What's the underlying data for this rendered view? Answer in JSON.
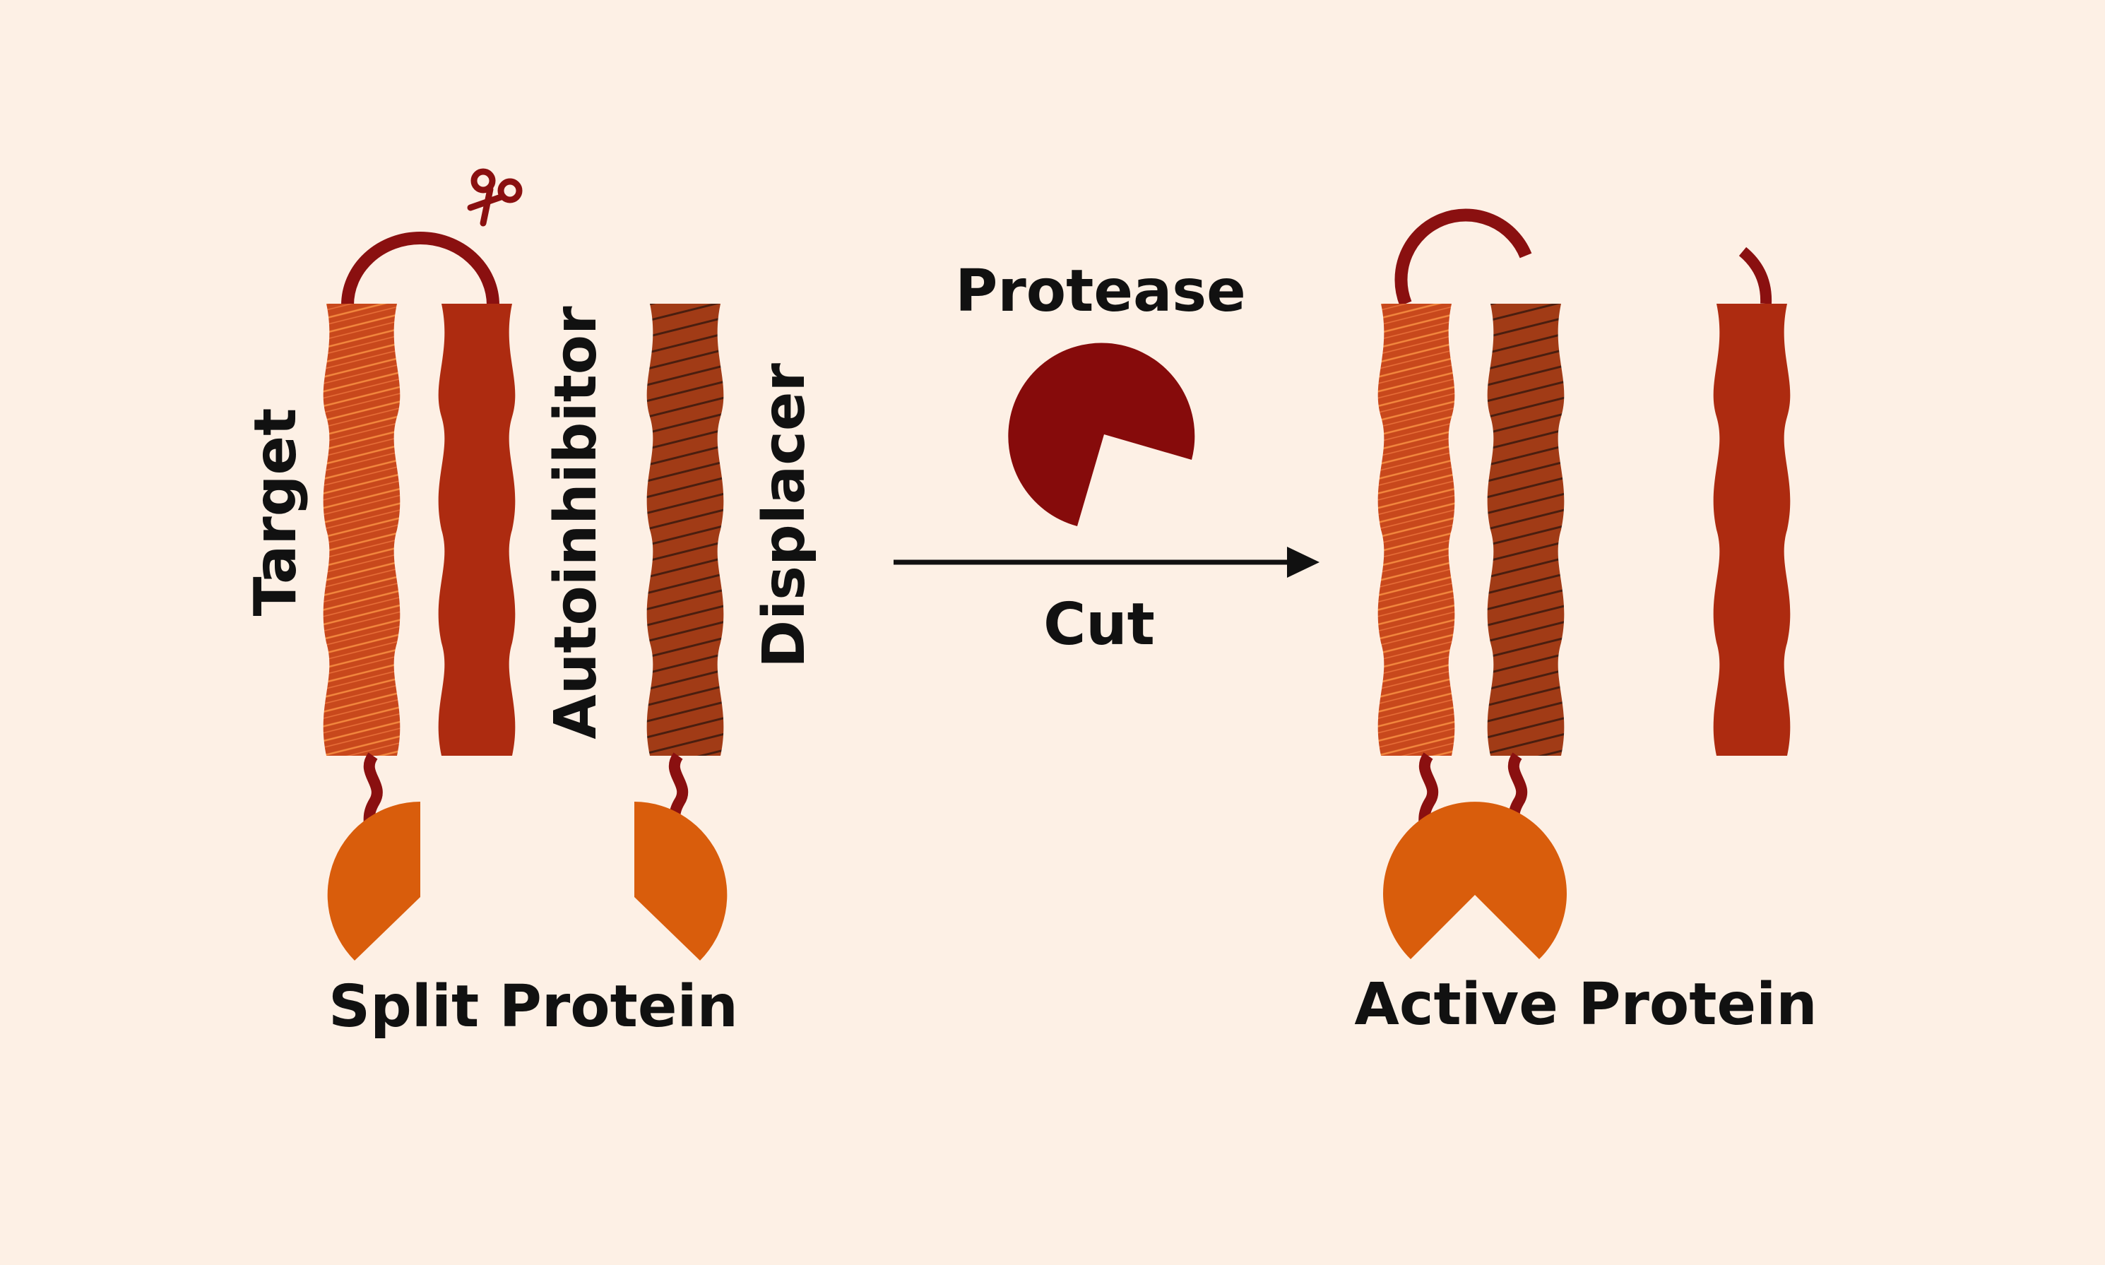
{
  "labels": {
    "target": "Target",
    "autoinhibitor": "Autoinhibitor",
    "displacer": "Displacer",
    "protease": "Protease",
    "cut": "Cut",
    "split_protein": "Split Protein",
    "active_protein": "Active Protein"
  },
  "icons": {
    "cut_site": "scissors-icon"
  },
  "colors": {
    "background": "#fdf0e5",
    "target_helix": "#c8481c",
    "target_stripes": "#f2873e",
    "autoinhibitor_helix": "#ad2b10",
    "displacer_helix": "#a13b16",
    "displacer_stripes": "#4a1e0f",
    "linker": "#8a1010",
    "protease": "#860b0b",
    "protein_half": "#d95d0c",
    "text": "#111111"
  }
}
